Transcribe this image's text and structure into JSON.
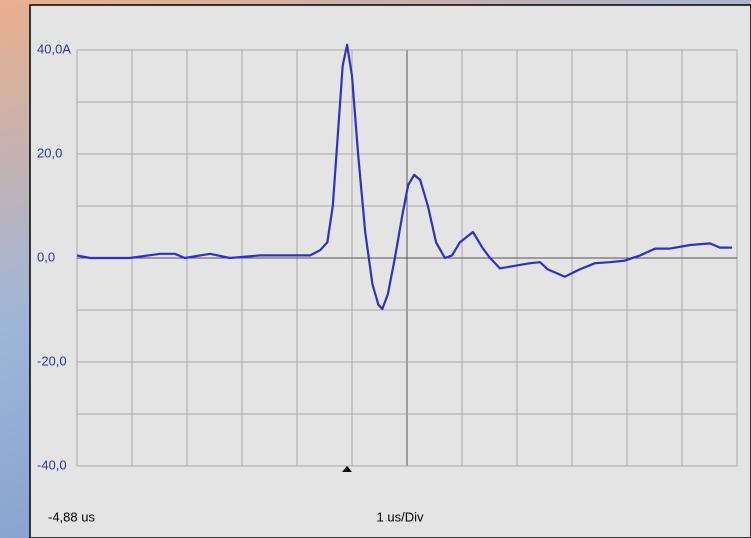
{
  "chart_data": {
    "type": "line",
    "color": "#2f2fd0",
    "grid": true,
    "xlim": [
      -4.88,
      7.12
    ],
    "xticks": [
      {
        "value": -4.88,
        "label": "-4,88 us"
      },
      {
        "value": -3.88,
        "label": null
      },
      {
        "value": -2.88,
        "label": null
      },
      {
        "value": -1.88,
        "label": null
      },
      {
        "value": -0.88,
        "label": null
      },
      {
        "value": 0.12,
        "label": null
      },
      {
        "value": 1.12,
        "label": null
      },
      {
        "value": 2.12,
        "label": null
      },
      {
        "value": 3.12,
        "label": null
      },
      {
        "value": 4.12,
        "label": null
      },
      {
        "value": 5.12,
        "label": null
      },
      {
        "value": 6.12,
        "label": null
      },
      {
        "value": 7.12,
        "label": null
      }
    ],
    "x_scale_label": "1 us/Div",
    "ylim": [
      -40,
      40
    ],
    "yticks": [
      {
        "value": -40,
        "label": "-40,0"
      },
      {
        "value": -30,
        "label": null
      },
      {
        "value": -20,
        "label": "-20,0"
      },
      {
        "value": -10,
        "label": null
      },
      {
        "value": 0,
        "label": "0,0"
      },
      {
        "value": 10,
        "label": null
      },
      {
        "value": 20,
        "label": "20,0"
      },
      {
        "value": 30,
        "label": null
      },
      {
        "value": 40,
        "label": "40,0A"
      }
    ],
    "x": [
      -4.88,
      -4.64,
      -3.92,
      -3.37,
      -3.1,
      -2.92,
      -2.46,
      -2.1,
      -1.55,
      -1.01,
      -0.64,
      -0.46,
      -0.33,
      -0.23,
      -0.13,
      -0.05,
      0.03,
      0.12,
      0.23,
      0.36,
      0.49,
      0.6,
      0.67,
      0.77,
      0.9,
      1.03,
      1.14,
      1.25,
      1.36,
      1.5,
      1.65,
      1.81,
      1.94,
      2.08,
      2.32,
      2.49,
      2.63,
      2.81,
      3.08,
      3.36,
      3.54,
      3.68,
      3.99,
      4.26,
      4.54,
      4.81,
      5.08,
      5.36,
      5.63,
      5.9,
      6.27,
      6.63,
      6.81,
      7.03
    ],
    "values": [
      0.5,
      0,
      0,
      0.8,
      0.8,
      0,
      0.8,
      0,
      0.5,
      0.5,
      0.5,
      1.5,
      3,
      10,
      25,
      37,
      41,
      35,
      20,
      5,
      -5,
      -9,
      -9.8,
      -7,
      0,
      8,
      14,
      16,
      15,
      10,
      3,
      0,
      0.5,
      3,
      5,
      2,
      0,
      -2,
      -1.5,
      -1,
      -0.8,
      -2.2,
      -3.6,
      -2.2,
      -1,
      -0.8,
      -0.5,
      0.5,
      1.8,
      1.8,
      2.5,
      2.8,
      2,
      2
    ]
  }
}
